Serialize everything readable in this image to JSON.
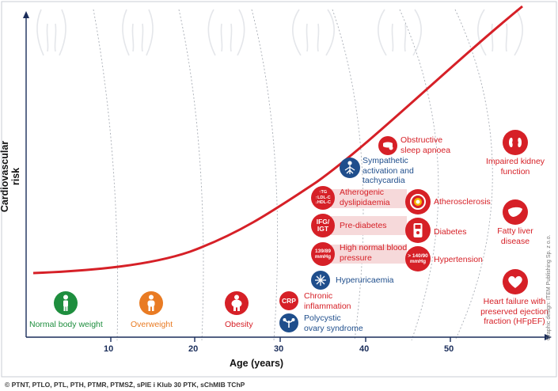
{
  "axes": {
    "y_label": "Cardiovascular risk",
    "x_label": "Age (years)",
    "x_ticks": [
      "10",
      "20",
      "30",
      "40",
      "50"
    ]
  },
  "colors": {
    "red": "#d62027",
    "blue": "#1f4e8c",
    "green": "#1e8e3e",
    "orange": "#e97b23",
    "axis": "#1a2d5a"
  },
  "weight_stages": [
    {
      "label": "Normal body weight",
      "icon": "person-slim-icon"
    },
    {
      "label": "Overweight",
      "icon": "person-medium-icon"
    },
    {
      "label": "Obesity",
      "icon": "person-obese-icon"
    }
  ],
  "conditions": {
    "crp": {
      "icon_text": "CRP",
      "label": "Chronic inflammation"
    },
    "pcos": {
      "icon": "ovary-icon",
      "label": "Polycystic ovary syndrome"
    },
    "hyperuricaemia": {
      "icon": "crystal-icon",
      "label": "Hyperuricaemia"
    },
    "high_normal_bp": {
      "icon_text_1": "139/89",
      "icon_text_2": "mmHg",
      "label": "High normal blood pressure"
    },
    "prediabetes": {
      "icon_text": "IFG/ IGT",
      "label": "Pre-diabetes"
    },
    "dyslipidaemia": {
      "icon_lines": [
        "↑TG",
        "↑LDL-C",
        "↓HDL-C"
      ],
      "label": "Atherogenic dyslipidaemia"
    },
    "sympathetic": {
      "icon": "nervous-system-icon",
      "label": "Sympathetic activation and tachycardia"
    },
    "sleep_apnoea": {
      "icon": "sleep-mask-icon",
      "label": "Obstructive sleep apnoea"
    },
    "atherosclerosis": {
      "icon": "artery-icon",
      "label": "Atherosclerosis"
    },
    "diabetes": {
      "icon": "glucometer-icon",
      "label": "Diabetes"
    },
    "hypertension": {
      "icon_text_1": "> 140/90",
      "icon_text_2": "mmHg",
      "label": "Hypertension"
    },
    "ckd": {
      "icon": "kidney-icon",
      "label": "Impaired kidney function"
    },
    "fatty_liver": {
      "icon": "liver-icon",
      "label": "Fatty liver disease"
    },
    "hfpef": {
      "icon": "heart-icon",
      "label": "Heart failure with preserved ejection fraction (HFpEF)"
    }
  },
  "credit": "© PTNT, PTLO, PTL, PTH, PTMR, PTMSŻ, sPIE i Klub 30 PTK, sChMIB TChP",
  "graphic_credit": "Graphic design: ITEM Publishing Sp. z o.o."
}
